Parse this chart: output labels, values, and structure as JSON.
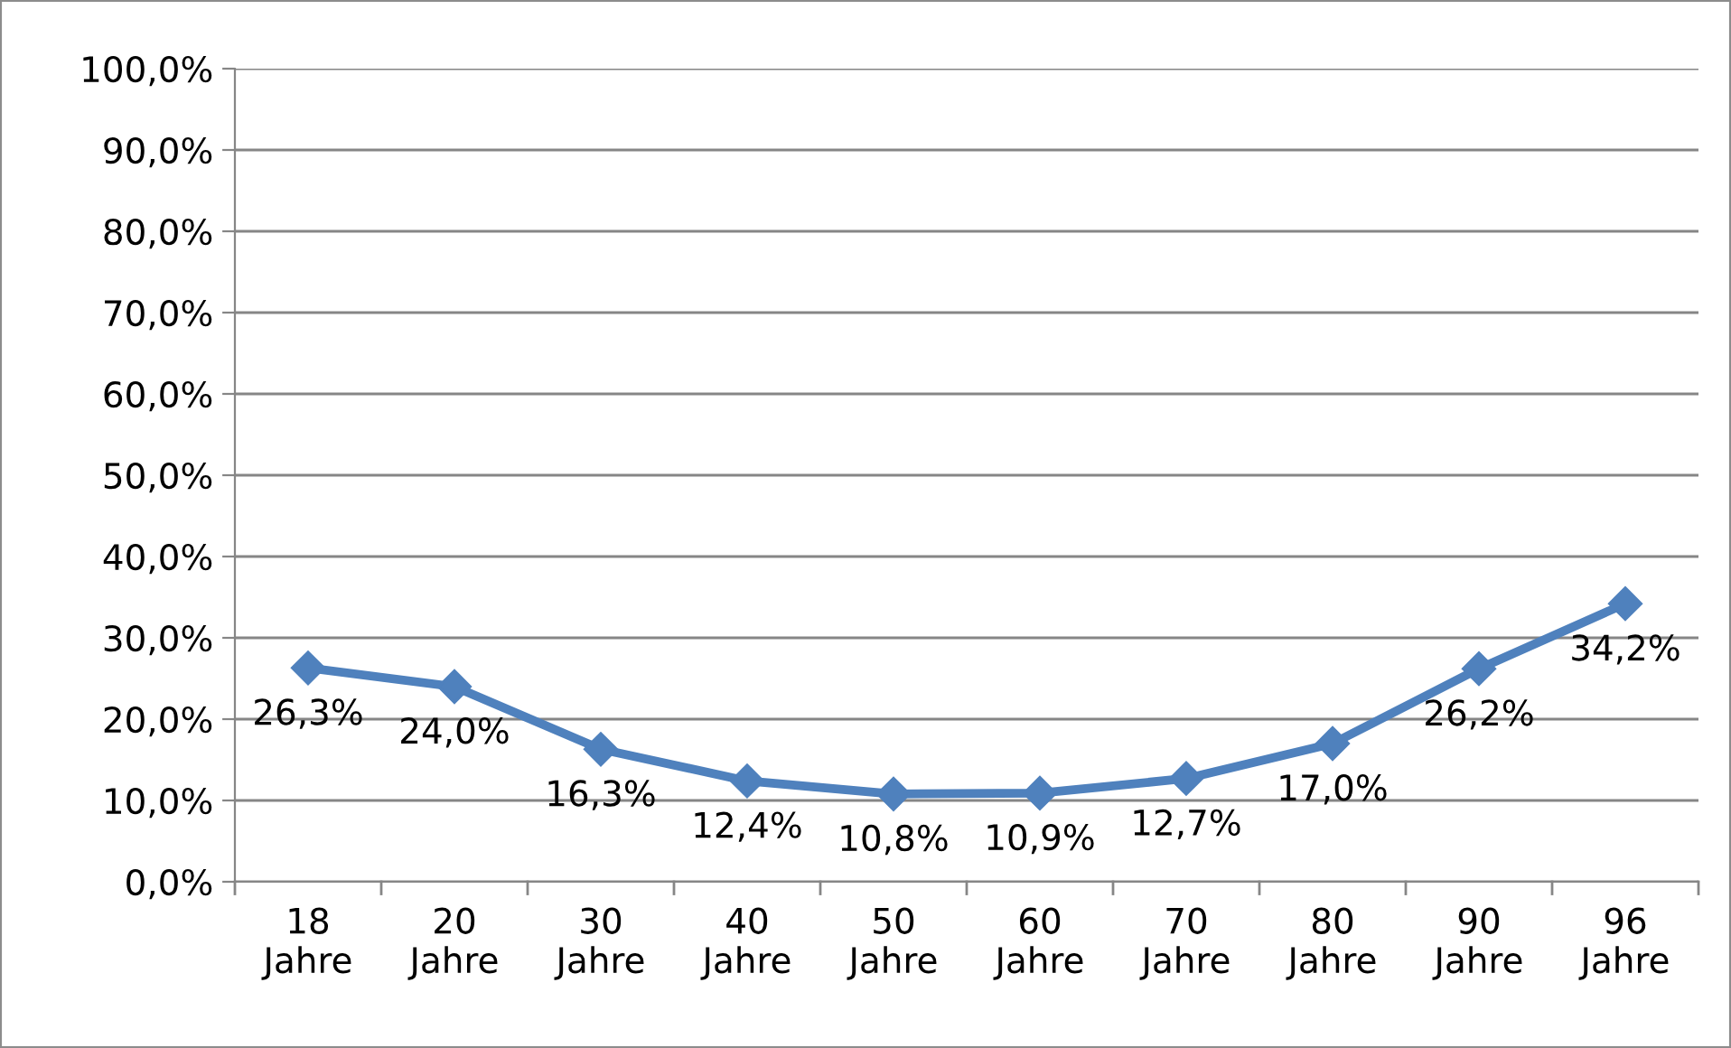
{
  "chart_data": {
    "type": "line",
    "categories": [
      "18\nJahre",
      "20\nJahre",
      "30\nJahre",
      "40\nJahre",
      "50\nJahre",
      "60\nJahre",
      "70\nJahre",
      "80\nJahre",
      "90\nJahre",
      "96\nJahre"
    ],
    "series": [
      {
        "color": "#4f81bd",
        "values": [
          26.3,
          24.0,
          16.3,
          12.4,
          10.8,
          10.9,
          12.7,
          17.0,
          26.2,
          34.2
        ],
        "value_labels": [
          "26,3%",
          "24,0%",
          "16,3%",
          "12,4%",
          "10,8%",
          "10,9%",
          "12,7%",
          "17,0%",
          "26,2%",
          "34,2%"
        ]
      }
    ],
    "ylim": [
      0,
      100
    ],
    "yticks": [
      {
        "value": 0,
        "label": "0,0%"
      },
      {
        "value": 10,
        "label": "10,0%"
      },
      {
        "value": 20,
        "label": "20,0%"
      },
      {
        "value": 30,
        "label": "30,0%"
      },
      {
        "value": 40,
        "label": "40,0%"
      },
      {
        "value": 50,
        "label": "50,0%"
      },
      {
        "value": 60,
        "label": "60,0%"
      },
      {
        "value": 70,
        "label": "70,0%"
      },
      {
        "value": 80,
        "label": "80,0%"
      },
      {
        "value": 90,
        "label": "90,0%"
      },
      {
        "value": 100,
        "label": "100,0%"
      }
    ],
    "grid": "y",
    "marker": "diamond",
    "line_style": "solid",
    "legend": false
  }
}
